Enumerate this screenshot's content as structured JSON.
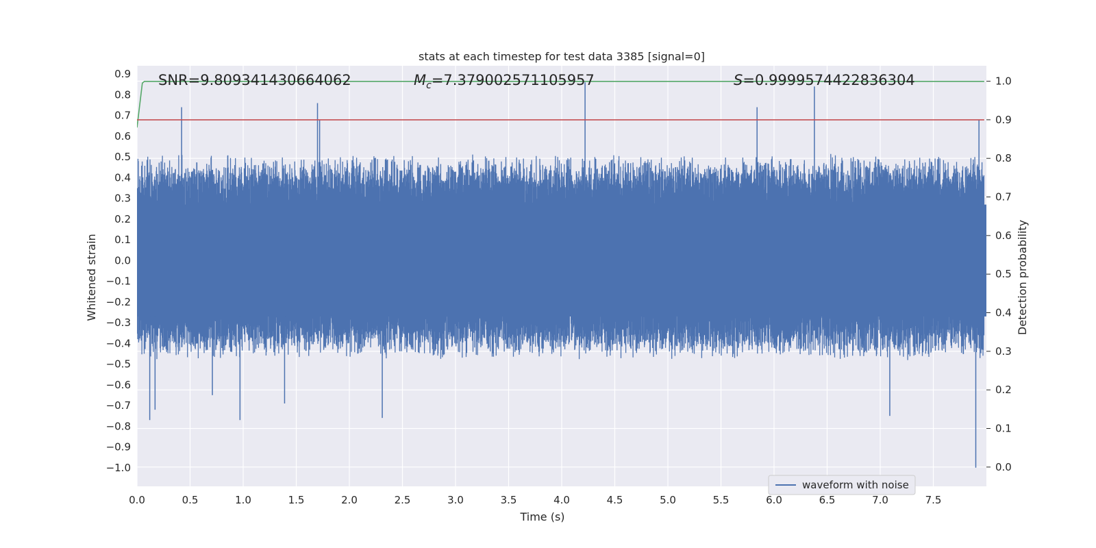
{
  "chart_data": {
    "type": "line",
    "title": "stats at each timestep for test data 3385 [signal=0]",
    "xlabel": "Time (s)",
    "ylabel": "Whitened strain",
    "y2label": "Detection probability",
    "xlim": [
      0.0,
      8.0
    ],
    "ylim": [
      -1.09,
      0.94
    ],
    "y2lim": [
      -0.05,
      1.04
    ],
    "xticks": [
      "0.0",
      "0.5",
      "1.0",
      "1.5",
      "2.0",
      "2.5",
      "3.0",
      "3.5",
      "4.0",
      "4.5",
      "5.0",
      "5.5",
      "6.0",
      "6.5",
      "7.0",
      "7.5"
    ],
    "yticks": [
      "0.9",
      "0.8",
      "0.7",
      "0.6",
      "0.5",
      "0.4",
      "0.3",
      "0.2",
      "0.1",
      "0.0",
      "−0.1",
      "−0.2",
      "−0.3",
      "−0.4",
      "−0.5",
      "−0.6",
      "−0.7",
      "−0.8",
      "−0.9",
      "−1.0"
    ],
    "y2ticks": [
      "1.0",
      "0.9",
      "0.8",
      "0.7",
      "0.6",
      "0.5",
      "0.4",
      "0.3",
      "0.2",
      "0.1",
      "0.0"
    ],
    "grid": true,
    "legend": {
      "placement": "lower right",
      "entries": [
        "waveform with noise"
      ]
    },
    "annotations": {
      "snr": "SNR=9.809341430664062",
      "mc_symbol": "M",
      "mc_sub": "c",
      "mc_value": "=7.379002571105957",
      "s_symbol": "S",
      "s_value": "=0.9999574422836304"
    },
    "series": [
      {
        "name": "waveform with noise",
        "axis": "left",
        "color": "#4c72b0",
        "typical_envelope": [
          -0.42,
          0.45
        ],
        "spikes": [
          {
            "x": 0.12,
            "y": -0.77
          },
          {
            "x": 0.17,
            "y": -0.72
          },
          {
            "x": 0.42,
            "y": 0.74
          },
          {
            "x": 0.71,
            "y": -0.65
          },
          {
            "x": 0.97,
            "y": -0.77
          },
          {
            "x": 1.39,
            "y": -0.69
          },
          {
            "x": 1.7,
            "y": 0.76
          },
          {
            "x": 1.72,
            "y": 0.68
          },
          {
            "x": 2.31,
            "y": -0.76
          },
          {
            "x": 4.22,
            "y": 0.86
          },
          {
            "x": 5.84,
            "y": 0.74
          },
          {
            "x": 6.38,
            "y": 0.84
          },
          {
            "x": 7.09,
            "y": -0.75
          },
          {
            "x": 7.9,
            "y": -1.0
          },
          {
            "x": 7.93,
            "y": 0.68
          }
        ]
      },
      {
        "name": "",
        "axis": "right",
        "color": "#55a868",
        "x": [
          0.0,
          0.05,
          0.07,
          7.98
        ],
        "y": [
          0.88,
          0.995,
          0.9995,
          0.9995
        ]
      },
      {
        "name": "",
        "axis": "right",
        "color": "#c44e52",
        "x": [
          0.0,
          7.98
        ],
        "y": [
          0.9,
          0.9
        ]
      }
    ]
  }
}
